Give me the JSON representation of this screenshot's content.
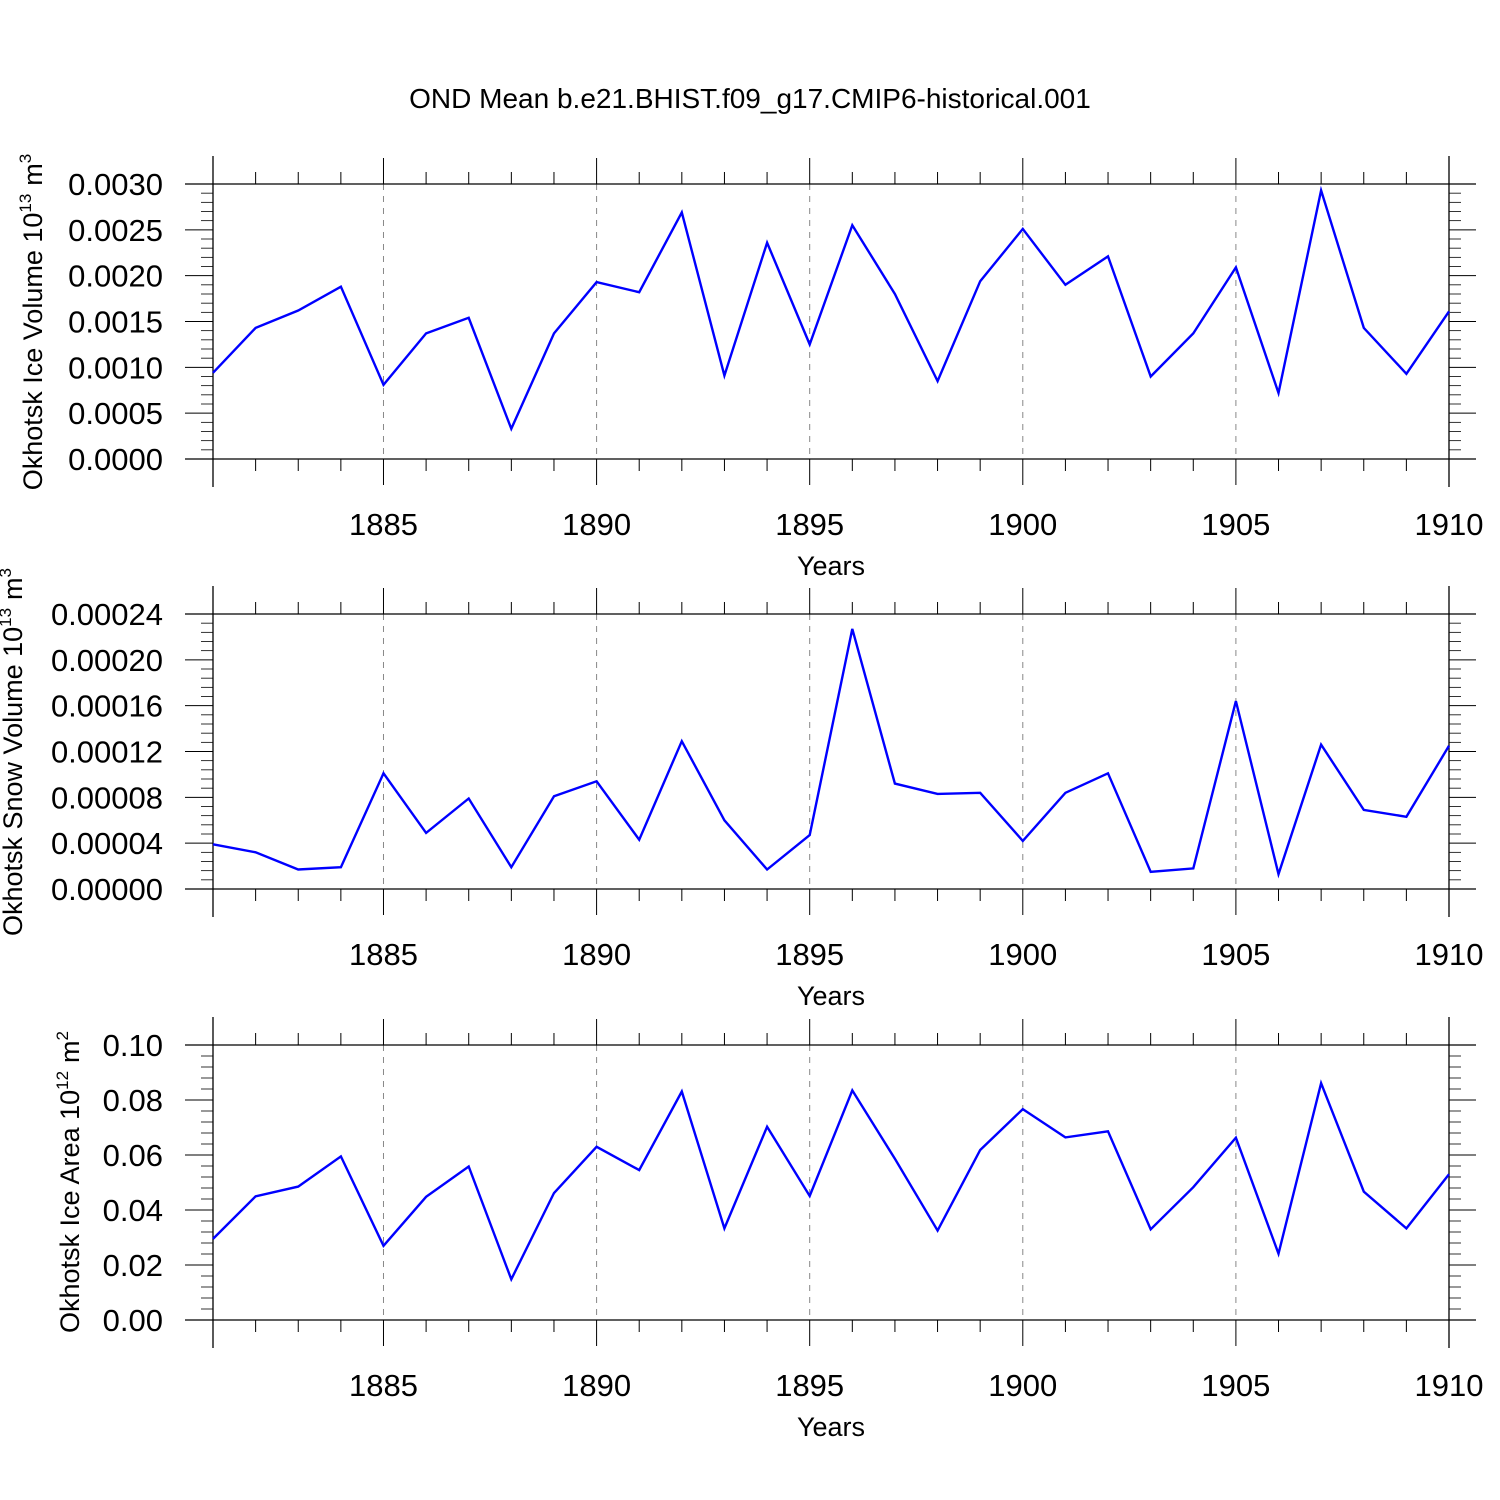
{
  "title": "OND Mean b.e21.BHIST.f09_g17.CMIP6-historical.001",
  "colors": {
    "line": "#0000ff",
    "axis": "#000000",
    "grid": "#888888"
  },
  "chart_data": [
    {
      "type": "line",
      "ylabel_main": "Okhotsk Ice Volume 10",
      "ylabel_exp": "13",
      "ylabel_unit": "m",
      "ylabel_unit_exp": "3",
      "xlabel": "Years",
      "xlim": [
        1881,
        1910
      ],
      "ylim": [
        0.0,
        0.003
      ],
      "yticks": [
        "0.0000",
        "0.0005",
        "0.0010",
        "0.0015",
        "0.0020",
        "0.0025",
        "0.0030"
      ],
      "ytick_values": [
        0.0,
        0.0005,
        0.001,
        0.0015,
        0.002,
        0.0025,
        0.003
      ],
      "xticks": [
        1885,
        1890,
        1895,
        1900,
        1905,
        1910
      ],
      "x": [
        1881,
        1882,
        1883,
        1884,
        1885,
        1886,
        1887,
        1888,
        1889,
        1890,
        1891,
        1892,
        1893,
        1894,
        1895,
        1896,
        1897,
        1898,
        1899,
        1900,
        1901,
        1902,
        1903,
        1904,
        1905,
        1906,
        1907,
        1908,
        1909,
        1910
      ],
      "values": [
        0.00094,
        0.00143,
        0.00162,
        0.00188,
        0.00081,
        0.00137,
        0.00154,
        0.00033,
        0.00137,
        0.00193,
        0.00182,
        0.00269,
        0.00091,
        0.00236,
        0.00125,
        0.00255,
        0.0018,
        0.00085,
        0.00194,
        0.00251,
        0.0019,
        0.00221,
        0.0009,
        0.00137,
        0.00209,
        0.00072,
        0.00293,
        0.00143,
        0.00093,
        0.00161
      ]
    },
    {
      "type": "line",
      "ylabel_main": "Okhotsk Snow Volume 10",
      "ylabel_exp": "13",
      "ylabel_unit": "m",
      "ylabel_unit_exp": "3",
      "xlabel": "Years",
      "xlim": [
        1881,
        1910
      ],
      "ylim": [
        0.0,
        0.00024
      ],
      "yticks": [
        "0.00000",
        "0.00004",
        "0.00008",
        "0.00012",
        "0.00016",
        "0.00020",
        "0.00024"
      ],
      "ytick_values": [
        0.0,
        4e-05,
        8e-05,
        0.00012,
        0.00016,
        0.0002,
        0.00024
      ],
      "xticks": [
        1885,
        1890,
        1895,
        1900,
        1905,
        1910
      ],
      "x": [
        1881,
        1882,
        1883,
        1884,
        1885,
        1886,
        1887,
        1888,
        1889,
        1890,
        1891,
        1892,
        1893,
        1894,
        1895,
        1896,
        1897,
        1898,
        1899,
        1900,
        1901,
        1902,
        1903,
        1904,
        1905,
        1906,
        1907,
        1908,
        1909,
        1910
      ],
      "values": [
        3.9e-05,
        3.2e-05,
        1.7e-05,
        1.9e-05,
        0.000101,
        4.9e-05,
        7.9e-05,
        1.9e-05,
        8.1e-05,
        9.4e-05,
        4.3e-05,
        0.000129,
        6e-05,
        1.7e-05,
        4.7e-05,
        0.000227,
        9.2e-05,
        8.3e-05,
        8.4e-05,
        4.2e-05,
        8.4e-05,
        0.000101,
        1.5e-05,
        1.8e-05,
        0.000164,
        1.3e-05,
        0.000126,
        6.9e-05,
        6.3e-05,
        0.000125
      ]
    },
    {
      "type": "line",
      "ylabel_main": "Okhotsk Ice Area 10",
      "ylabel_exp": "12",
      "ylabel_unit": "m",
      "ylabel_unit_exp": "2",
      "xlabel": "Years",
      "xlim": [
        1881,
        1910
      ],
      "ylim": [
        0.0,
        0.1
      ],
      "yticks": [
        "0.00",
        "0.02",
        "0.04",
        "0.06",
        "0.08",
        "0.10"
      ],
      "ytick_values": [
        0.0,
        0.02,
        0.04,
        0.06,
        0.08,
        0.1
      ],
      "xticks": [
        1885,
        1890,
        1895,
        1900,
        1905,
        1910
      ],
      "x": [
        1881,
        1882,
        1883,
        1884,
        1885,
        1886,
        1887,
        1888,
        1889,
        1890,
        1891,
        1892,
        1893,
        1894,
        1895,
        1896,
        1897,
        1898,
        1899,
        1900,
        1901,
        1902,
        1903,
        1904,
        1905,
        1906,
        1907,
        1908,
        1909,
        1910
      ],
      "values": [
        0.0295,
        0.045,
        0.0485,
        0.0595,
        0.027,
        0.0448,
        0.0558,
        0.0148,
        0.0462,
        0.063,
        0.0545,
        0.0831,
        0.0333,
        0.0703,
        0.0451,
        0.0835,
        0.0586,
        0.0325,
        0.0618,
        0.0767,
        0.0664,
        0.0686,
        0.033,
        0.0483,
        0.0663,
        0.0241,
        0.0861,
        0.0467,
        0.0333,
        0.053
      ]
    }
  ]
}
